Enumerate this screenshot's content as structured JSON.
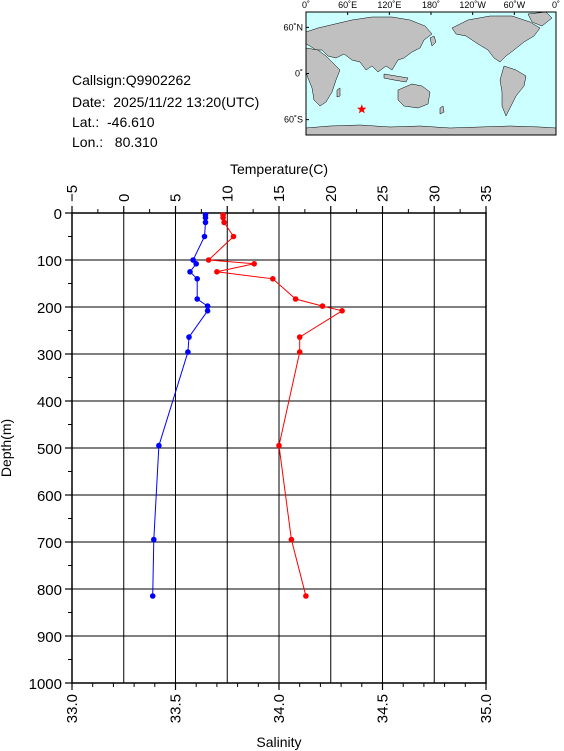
{
  "header": {
    "callsign": "Callsign:Q9902262",
    "date": "Date:  2025/11/22 13:20(UTC)",
    "lat": "Lat.:  -46.610",
    "lon": "Lon.:   80.310"
  },
  "map": {
    "top_labels": [
      "0˚",
      "60˚E",
      "120˚E",
      "180˚",
      "120˚W",
      "60˚W",
      "0˚"
    ],
    "side_labels": [
      "60˚N",
      "0˚",
      "60˚S"
    ],
    "ocean_color": "#ccffff",
    "land_color": "#c0c0c0",
    "marker_color": "#ff0000",
    "marker": {
      "lon": 80.31,
      "lat": -46.61
    }
  },
  "chart_data": {
    "type": "line",
    "title": "",
    "ylabel": "Depth(m)",
    "x_top_label": "Temperature(C)",
    "x_bottom_label": "Salinity",
    "ylim": [
      0,
      1000
    ],
    "y_ticks": [
      "0",
      "100",
      "200",
      "300",
      "400",
      "500",
      "600",
      "700",
      "800",
      "900",
      "1000"
    ],
    "temperature_lim": [
      -5,
      35
    ],
    "temperature_ticks": [
      "-5",
      "0",
      "5",
      "10",
      "15",
      "20",
      "25",
      "30",
      "35"
    ],
    "salinity_lim": [
      33.0,
      35.0
    ],
    "salinity_ticks": [
      "33.0",
      "33.5",
      "34.0",
      "34.5",
      "35.0"
    ],
    "series": [
      {
        "name": "",
        "axis": "temperature",
        "color": "#ff0000",
        "points": [
          {
            "t": 9.6,
            "d": 4
          },
          {
            "t": 9.6,
            "d": 10
          },
          {
            "t": 9.7,
            "d": 20
          },
          {
            "t": 10.6,
            "d": 50
          },
          {
            "t": 8.2,
            "d": 100
          },
          {
            "t": 12.6,
            "d": 108
          },
          {
            "t": 9.0,
            "d": 125
          },
          {
            "t": 14.4,
            "d": 140
          },
          {
            "t": 16.6,
            "d": 183
          },
          {
            "t": 19.2,
            "d": 198
          },
          {
            "t": 21.1,
            "d": 208
          },
          {
            "t": 17.0,
            "d": 264
          },
          {
            "t": 17.0,
            "d": 296
          },
          {
            "t": 15.0,
            "d": 495
          },
          {
            "t": 16.2,
            "d": 695
          },
          {
            "t": 17.6,
            "d": 815
          }
        ]
      },
      {
        "name": "",
        "axis": "salinity",
        "color": "#0000ff",
        "points": [
          {
            "s": 33.645,
            "d": 4
          },
          {
            "s": 33.645,
            "d": 10
          },
          {
            "s": 33.645,
            "d": 20
          },
          {
            "s": 33.64,
            "d": 50
          },
          {
            "s": 33.585,
            "d": 100
          },
          {
            "s": 33.6,
            "d": 108
          },
          {
            "s": 33.57,
            "d": 125
          },
          {
            "s": 33.605,
            "d": 140
          },
          {
            "s": 33.605,
            "d": 183
          },
          {
            "s": 33.655,
            "d": 198
          },
          {
            "s": 33.655,
            "d": 208
          },
          {
            "s": 33.565,
            "d": 264
          },
          {
            "s": 33.56,
            "d": 296
          },
          {
            "s": 33.42,
            "d": 495
          },
          {
            "s": 33.395,
            "d": 695
          },
          {
            "s": 33.39,
            "d": 815
          }
        ]
      }
    ]
  }
}
